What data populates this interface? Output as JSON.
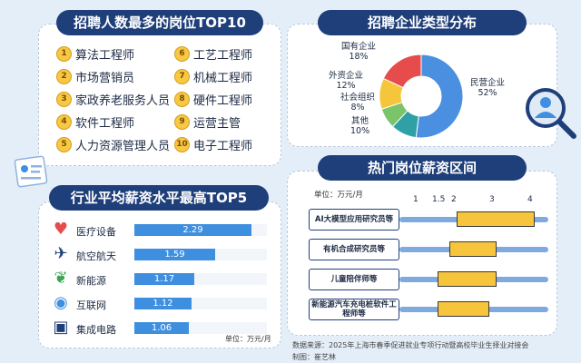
{
  "top10": {
    "title": "招聘人数最多的岗位TOP10",
    "items": [
      {
        "rank": "1",
        "name": "算法工程师"
      },
      {
        "rank": "2",
        "name": "市场营销员"
      },
      {
        "rank": "3",
        "name": "家政养老服务人员"
      },
      {
        "rank": "4",
        "name": "软件工程师"
      },
      {
        "rank": "5",
        "name": "人力资源管理人员"
      },
      {
        "rank": "6",
        "name": "工艺工程师"
      },
      {
        "rank": "7",
        "name": "机械工程师"
      },
      {
        "rank": "8",
        "name": "硬件工程师"
      },
      {
        "rank": "9",
        "name": "运营主管"
      },
      {
        "rank": "10",
        "name": "电子工程师"
      }
    ]
  },
  "salary_top5": {
    "title": "行业平均薪资水平最高TOP5",
    "unit": "单位：万元/月",
    "icons": [
      "medical-heart-icon",
      "airplane-icon",
      "leaf-energy-icon",
      "globe-internet-icon",
      "chip-icon"
    ]
  },
  "enterprise": {
    "title": "招聘企业类型分布",
    "labels": [
      {
        "name": "民营企业",
        "pct": "52%"
      },
      {
        "name": "其他",
        "pct": "10%"
      },
      {
        "name": "社会组织",
        "pct": "8%"
      },
      {
        "name": "外资企业",
        "pct": "12%"
      },
      {
        "name": "国有企业",
        "pct": "18%"
      }
    ],
    "colors": [
      "#4a8fe0",
      "#2ea0a6",
      "#7bc46a",
      "#f5c53a",
      "#e74c4c"
    ]
  },
  "ranges": {
    "title": "热门岗位薪资区间",
    "unit": "单位：万元/月",
    "ticks": [
      "1",
      "1.5",
      "2",
      "3",
      "4"
    ]
  },
  "footer": {
    "source": "数据来源：2025年上海市春季促进就业专项行动暨高校毕业生择业对接会",
    "author": "制图：崔艺林"
  },
  "chart_data": [
    {
      "type": "bar",
      "title": "行业平均薪资水平最高TOP5",
      "categories": [
        "医疗设备",
        "航空航天",
        "新能源",
        "互联网",
        "集成电路"
      ],
      "values": [
        2.29,
        1.59,
        1.17,
        1.12,
        1.06
      ],
      "xlim": [
        0,
        2.6
      ]
    },
    {
      "type": "pie",
      "title": "招聘企业类型分布",
      "categories": [
        "民营企业",
        "其他",
        "社会组织",
        "外资企业",
        "国有企业"
      ],
      "values": [
        52,
        10,
        8,
        12,
        18
      ]
    },
    {
      "type": "bar",
      "title": "热门岗位薪资区间",
      "categories": [
        "AI大模型应用研究员等",
        "有机合成研究员等",
        "儿童陪伴师等",
        "新能源汽车充电桩软件工程师等"
      ],
      "ranges": [
        [
          2,
          4
        ],
        [
          1.8,
          3
        ],
        [
          1.5,
          3
        ],
        [
          1.5,
          2.8
        ]
      ],
      "xlim": [
        0.5,
        4.4
      ]
    }
  ]
}
